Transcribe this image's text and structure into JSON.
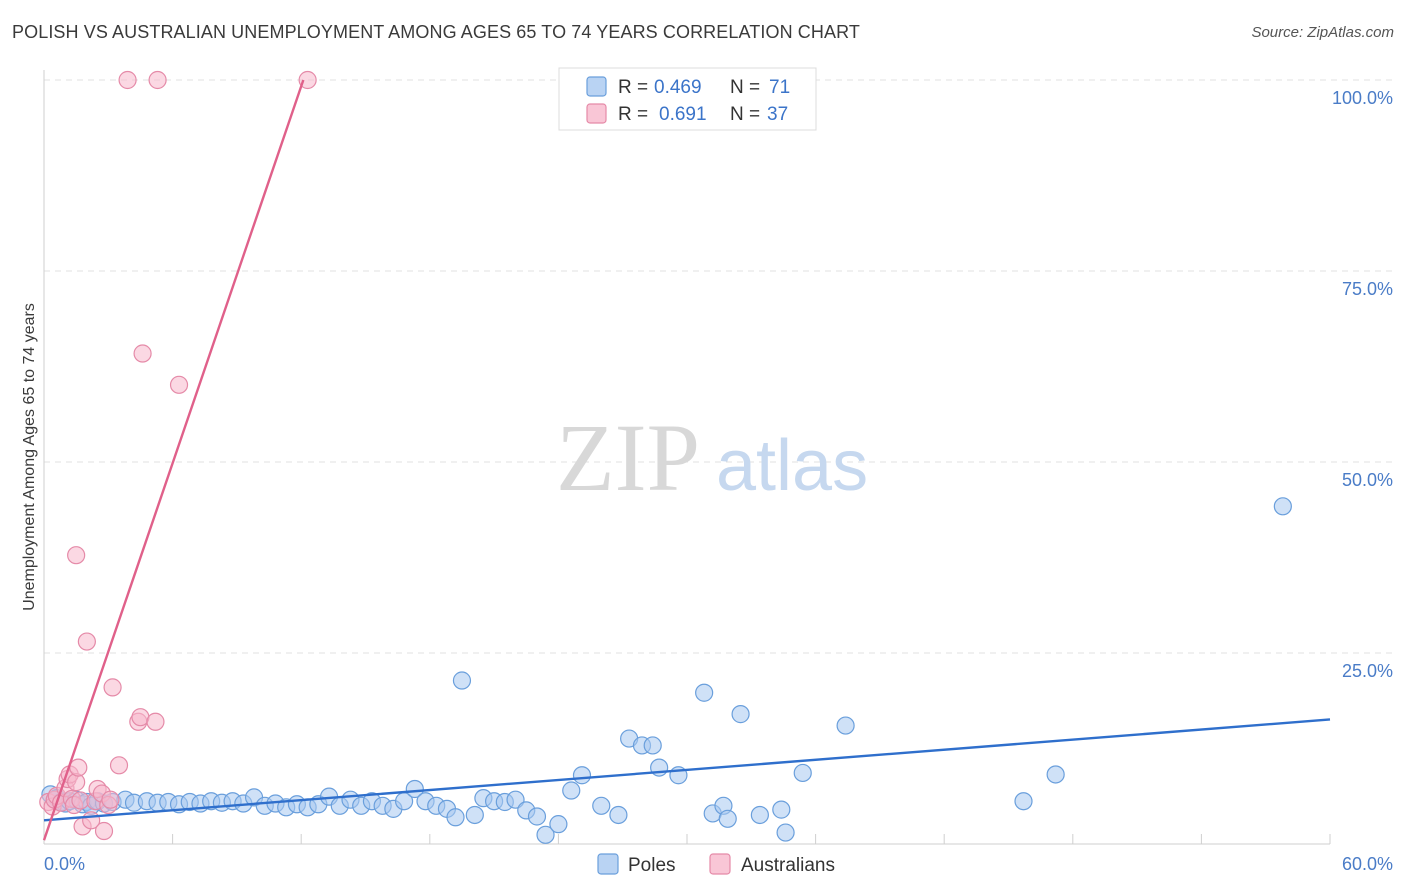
{
  "title": "POLISH VS AUSTRALIAN UNEMPLOYMENT AMONG AGES 65 TO 74 YEARS CORRELATION CHART",
  "source": "Source: ZipAtlas.com",
  "watermark": {
    "zip": "ZIP",
    "atlas": "atlas"
  },
  "colors": {
    "poles_fill": "#a8c8f0",
    "poles_stroke": "#6a9fdc",
    "poles_line": "#2f6fcc",
    "aus_fill": "#f7b8cc",
    "aus_stroke": "#e58aa8",
    "aus_line": "#e0608a",
    "grid": "#e2e2e2",
    "tick_text": "#4a7cc7"
  },
  "legend": {
    "rows": [
      {
        "r_label": "R =",
        "r_value": "0.469",
        "n_label": "N =",
        "n_value": "71"
      },
      {
        "r_label": "R =",
        "r_value": "0.691",
        "n_label": "N =",
        "n_value": "37"
      }
    ]
  },
  "chart_data": {
    "type": "scatter",
    "ylabel": "Unemployment Among Ages 65 to 74 years",
    "xlim": [
      0,
      60
    ],
    "ylim": [
      0,
      100
    ],
    "x_tick_labels": [
      "0.0%",
      "60.0%"
    ],
    "y_ticks": [
      25,
      50,
      75,
      100
    ],
    "y_tick_labels": [
      "25.0%",
      "50.0%",
      "75.0%",
      "100.0%"
    ],
    "series": [
      {
        "name": "Poles",
        "trend": {
          "x": [
            0,
            60
          ],
          "y": [
            3.1,
            16.3
          ]
        },
        "points": [
          [
            0.3,
            6.5
          ],
          [
            0.5,
            5.8
          ],
          [
            0.6,
            6.0
          ],
          [
            0.8,
            5.5
          ],
          [
            1.0,
            5.3
          ],
          [
            1.2,
            5.6
          ],
          [
            1.5,
            5.8
          ],
          [
            1.8,
            5.2
          ],
          [
            2.0,
            5.5
          ],
          [
            2.2,
            5.0
          ],
          [
            2.5,
            5.6
          ],
          [
            2.8,
            5.3
          ],
          [
            3.2,
            5.5
          ],
          [
            3.8,
            5.8
          ],
          [
            4.2,
            5.4
          ],
          [
            4.8,
            5.6
          ],
          [
            5.3,
            5.4
          ],
          [
            5.8,
            5.5
          ],
          [
            6.3,
            5.2
          ],
          [
            6.8,
            5.5
          ],
          [
            7.3,
            5.3
          ],
          [
            7.8,
            5.6
          ],
          [
            8.3,
            5.4
          ],
          [
            8.8,
            5.6
          ],
          [
            9.3,
            5.3
          ],
          [
            9.8,
            6.1
          ],
          [
            10.3,
            5.0
          ],
          [
            10.8,
            5.3
          ],
          [
            11.3,
            4.8
          ],
          [
            11.8,
            5.2
          ],
          [
            12.3,
            4.8
          ],
          [
            12.8,
            5.2
          ],
          [
            13.3,
            6.2
          ],
          [
            13.8,
            5.0
          ],
          [
            14.3,
            5.8
          ],
          [
            14.8,
            5.0
          ],
          [
            15.3,
            5.6
          ],
          [
            15.8,
            5.0
          ],
          [
            16.3,
            4.6
          ],
          [
            16.8,
            5.6
          ],
          [
            17.3,
            7.2
          ],
          [
            17.8,
            5.6
          ],
          [
            18.3,
            5.0
          ],
          [
            18.8,
            4.6
          ],
          [
            19.2,
            3.5
          ],
          [
            19.5,
            21.4
          ],
          [
            20.1,
            3.8
          ],
          [
            20.5,
            6.0
          ],
          [
            21.0,
            5.6
          ],
          [
            21.5,
            5.5
          ],
          [
            22.0,
            5.8
          ],
          [
            22.5,
            4.4
          ],
          [
            23.0,
            3.6
          ],
          [
            23.4,
            1.2
          ],
          [
            24.0,
            2.6
          ],
          [
            24.6,
            7.0
          ],
          [
            25.1,
            9.0
          ],
          [
            26.0,
            5.0
          ],
          [
            26.8,
            3.8
          ],
          [
            27.3,
            13.8
          ],
          [
            27.9,
            12.9
          ],
          [
            28.4,
            12.9
          ],
          [
            28.7,
            10.0
          ],
          [
            29.6,
            9.0
          ],
          [
            30.8,
            19.8
          ],
          [
            31.2,
            4.0
          ],
          [
            31.7,
            5.0
          ],
          [
            31.9,
            3.3
          ],
          [
            32.5,
            17.0
          ],
          [
            33.4,
            3.8
          ],
          [
            34.4,
            4.5
          ],
          [
            34.6,
            1.5
          ],
          [
            35.4,
            9.3
          ],
          [
            37.4,
            15.5
          ],
          [
            45.7,
            5.6
          ],
          [
            47.2,
            9.1
          ],
          [
            57.8,
            44.2
          ]
        ]
      },
      {
        "name": "Australians",
        "trend": {
          "x": [
            0,
            12.1
          ],
          "y": [
            0.5,
            100
          ]
        },
        "points": [
          [
            0.2,
            5.5
          ],
          [
            0.4,
            4.9
          ],
          [
            0.5,
            5.8
          ],
          [
            0.6,
            6.3
          ],
          [
            0.8,
            5.4
          ],
          [
            1.0,
            7.3
          ],
          [
            1.1,
            8.5
          ],
          [
            1.2,
            9.1
          ],
          [
            1.3,
            5.9
          ],
          [
            1.4,
            5.1
          ],
          [
            1.5,
            8.1
          ],
          [
            1.6,
            10.0
          ],
          [
            1.7,
            5.7
          ],
          [
            1.5,
            37.8
          ],
          [
            1.8,
            2.3
          ],
          [
            2.0,
            26.5
          ],
          [
            2.2,
            3.1
          ],
          [
            2.4,
            5.6
          ],
          [
            2.5,
            7.2
          ],
          [
            2.7,
            6.6
          ],
          [
            2.8,
            1.7
          ],
          [
            3.0,
            5.1
          ],
          [
            3.1,
            5.8
          ],
          [
            3.2,
            20.5
          ],
          [
            3.5,
            10.3
          ],
          [
            3.9,
            100
          ],
          [
            4.4,
            16.0
          ],
          [
            4.5,
            16.6
          ],
          [
            4.6,
            64.2
          ],
          [
            5.2,
            16.0
          ],
          [
            5.3,
            100
          ],
          [
            6.3,
            60.1
          ],
          [
            12.3,
            100
          ]
        ]
      }
    ]
  },
  "bottom_legend": {
    "poles_label": "Poles",
    "aus_label": "Australians"
  }
}
